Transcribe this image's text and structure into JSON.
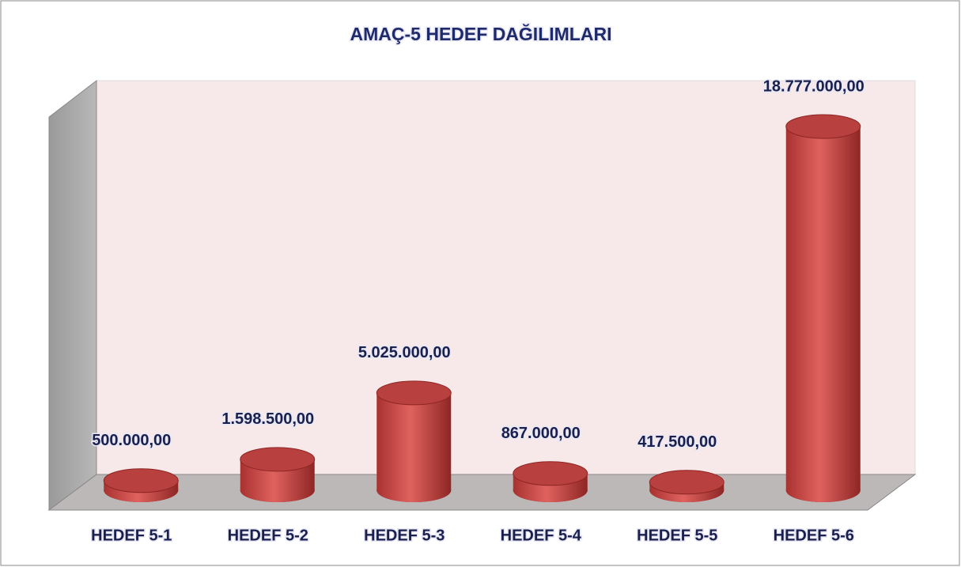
{
  "chart_data": {
    "type": "bar3d",
    "title": "AMAÇ-5 HEDEF DAĞILIMLARI",
    "categories": [
      "HEDEF 5-1",
      "HEDEF 5-2",
      "HEDEF 5-3",
      "HEDEF 5-4",
      "HEDEF 5-5",
      "HEDEF 5-6"
    ],
    "values": [
      500000,
      1598500,
      5025000,
      867000,
      417500,
      18777000
    ],
    "value_labels": [
      "500.000,00",
      "1.598.500,00",
      "5.025.000,00",
      "867.000,00",
      "417.500,00",
      "18.777.000,00"
    ],
    "color": "#c9504f"
  }
}
